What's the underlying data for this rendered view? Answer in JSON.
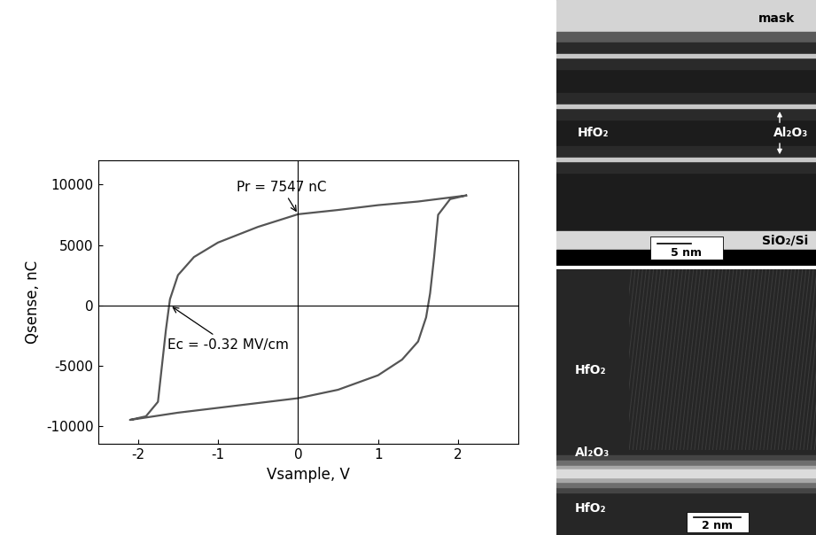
{
  "chart_data": {
    "type": "line",
    "xlabel": "Vsample, V",
    "ylabel": "Qsense, nC",
    "color": "#555555",
    "x": [
      2.1,
      1.5,
      1.0,
      0.5,
      0.0,
      -0.5,
      -1.0,
      -1.3,
      -1.5,
      -1.6,
      -1.65,
      -1.7,
      -1.75,
      -1.9,
      -2.1,
      -1.5,
      -1.0,
      -0.5,
      0.0,
      0.5,
      1.0,
      1.3,
      1.5,
      1.6,
      1.65,
      1.7,
      1.75,
      1.9,
      2.1
    ],
    "values": [
      9100,
      8600,
      8300,
      7900,
      7547,
      6500,
      5200,
      4000,
      2500,
      500,
      -2000,
      -5000,
      -8000,
      -9200,
      -9500,
      -8900,
      -8500,
      -8100,
      -7700,
      -7000,
      -5800,
      -4500,
      -3000,
      -1000,
      1000,
      4000,
      7500,
      8800,
      9100
    ],
    "xlim": [
      -2.5,
      2.75
    ],
    "ylim": [
      -11500,
      12000
    ],
    "xticks": [
      -2,
      -1,
      0,
      1,
      2
    ],
    "yticks": [
      -10000,
      -5000,
      0,
      5000,
      10000
    ],
    "annotations": [
      {
        "text": "Pr = 7547 nC",
        "x": 0,
        "y": 7547
      },
      {
        "text": "Ec = -0.32 MV/cm",
        "x": -1.6,
        "y": 0
      }
    ]
  },
  "micrographs": {
    "top": {
      "mask": "mask",
      "layer": "HfO₂",
      "interlayer": "Al₂O₃",
      "substrate": "SiO₂/Si",
      "scale_bar": "5 nm"
    },
    "bottom": {
      "upper_layer": "HfO₂",
      "interlayer": "Al₂O₃",
      "lower_layer": "HfO₂",
      "scale_bar": "2 nm"
    }
  }
}
